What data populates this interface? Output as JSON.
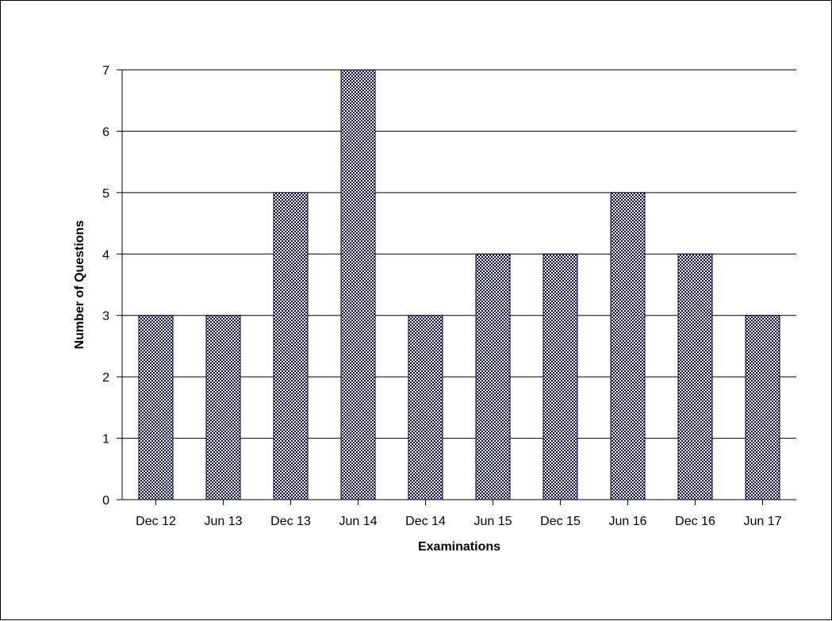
{
  "chart_data": {
    "type": "bar",
    "title": "",
    "xlabel": "Examinations",
    "ylabel": "Number of Questions",
    "categories": [
      "Dec 12",
      "Jun 13",
      "Dec 13",
      "Jun 14",
      "Dec 14",
      "Jun 15",
      "Dec 15",
      "Jun 16",
      "Dec 16",
      "Jun 17"
    ],
    "values": [
      3,
      3,
      5,
      7,
      3,
      4,
      4,
      5,
      4,
      3
    ],
    "ylim": [
      0,
      7
    ],
    "yticks": [
      0,
      1,
      2,
      3,
      4,
      5,
      6,
      7
    ],
    "grid": true,
    "legend": "none",
    "bar_color": "#0000a0",
    "bar_pattern": "checkerboard"
  }
}
